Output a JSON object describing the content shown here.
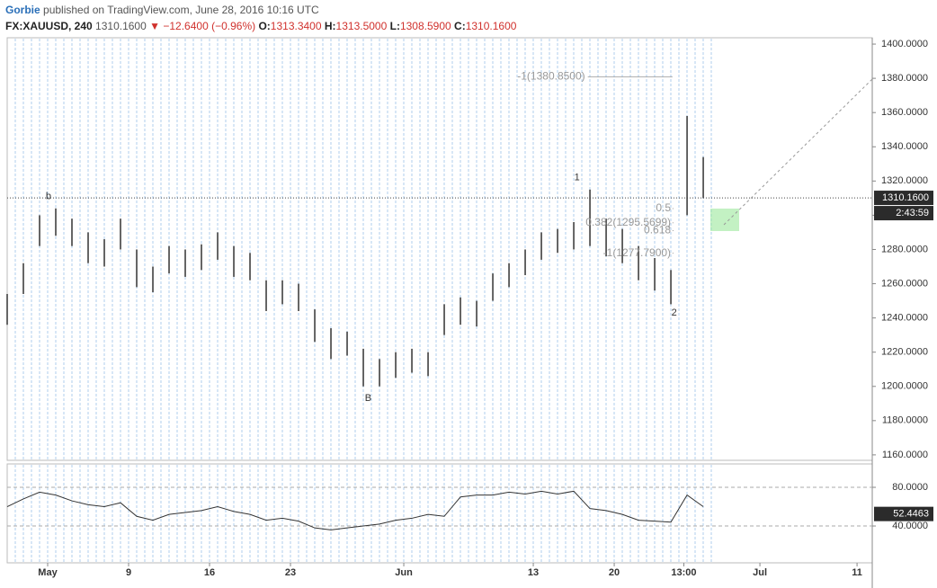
{
  "header": {
    "author": "Gorbie",
    "published": "published on TradingView.com, June 28, 2016 10:16 UTC",
    "symbol": "FX:XAUUSD, 240",
    "last": "1310.1600",
    "change": "−12.6400 (−0.96%)",
    "ohlc": [
      {
        "key": "O:",
        "value": "1313.3400"
      },
      {
        "key": "H:",
        "value": "1313.5000"
      },
      {
        "key": "L:",
        "value": "1308.5900"
      },
      {
        "key": "C:",
        "value": "1310.1600"
      }
    ]
  },
  "chart_data": [
    {
      "type": "ohlc",
      "color": "#333333",
      "x": [
        -2.5,
        -1.5,
        -0.5,
        0.5,
        1.5,
        2.5,
        3.5,
        4.5,
        5.5,
        6.5,
        7.5,
        8.5,
        9.5,
        10.5,
        11.5,
        12.5,
        13.5,
        14.5,
        15.5,
        16.5,
        17.5,
        18.5,
        19.5,
        20.5,
        21.5,
        22.5,
        23.5,
        24.5,
        25.5,
        26.5,
        27.5,
        28.5,
        29.5,
        30.5,
        31.5,
        32.5,
        33.5,
        34.5,
        35.5,
        36.5,
        37.5,
        38.5,
        39.5,
        40.5
      ],
      "high": [
        1254,
        1272,
        1300,
        1304,
        1298,
        1290,
        1286,
        1298,
        1280,
        1270,
        1282,
        1280,
        1283,
        1290,
        1282,
        1278,
        1262,
        1262,
        1260,
        1245,
        1234,
        1232,
        1222,
        1216,
        1220,
        1222,
        1220,
        1248,
        1252,
        1250,
        1266,
        1272,
        1280,
        1290,
        1292,
        1296,
        1315,
        1298,
        1292,
        1282,
        1275,
        1268,
        1358,
        1334
      ],
      "low": [
        1236,
        1254,
        1282,
        1288,
        1282,
        1272,
        1270,
        1280,
        1258,
        1255,
        1266,
        1264,
        1268,
        1274,
        1264,
        1262,
        1244,
        1248,
        1244,
        1226,
        1216,
        1218,
        1200,
        1200,
        1205,
        1208,
        1206,
        1230,
        1236,
        1235,
        1250,
        1258,
        1265,
        1274,
        1278,
        1280,
        1282,
        1276,
        1272,
        1262,
        1256,
        1248,
        1300,
        1310
      ],
      "last_price": {
        "value": 1310.16,
        "label": "1310.1600"
      },
      "countdown": "2:43:59",
      "xlim": [
        -2.5,
        50.94
      ],
      "ylim": [
        1156.8,
        1403.7
      ],
      "xticks": [
        {
          "value": 0,
          "label": "May"
        },
        {
          "value": 5,
          "label": "9"
        },
        {
          "value": 10,
          "label": "16"
        },
        {
          "value": 15,
          "label": "23"
        },
        {
          "value": 22,
          "label": "Jun"
        },
        {
          "value": 30,
          "label": "13"
        },
        {
          "value": 35,
          "label": "20"
        },
        {
          "value": 39.3,
          "label": "13:00"
        },
        {
          "value": 44,
          "label": "Jul"
        },
        {
          "value": 50,
          "label": "11"
        }
      ],
      "yticks": [
        {
          "value": 1160,
          "label": "1160.0000"
        },
        {
          "value": 1180,
          "label": "1180.0000"
        },
        {
          "value": 1200,
          "label": "1200.0000"
        },
        {
          "value": 1220,
          "label": "1220.0000"
        },
        {
          "value": 1240,
          "label": "1240.0000"
        },
        {
          "value": 1260,
          "label": "1260.0000"
        },
        {
          "value": 1280,
          "label": "1280.0000"
        },
        {
          "value": 1300,
          "label": "1300.0000"
        },
        {
          "value": 1320,
          "label": "1320.0000"
        },
        {
          "value": 1340,
          "label": "1340.0000"
        },
        {
          "value": 1360,
          "label": "1360.0000"
        },
        {
          "value": 1380,
          "label": "1380.0000"
        },
        {
          "value": 1400,
          "label": "1400.0000"
        }
      ],
      "annotations": [
        {
          "text": "b",
          "x": 0.05,
          "y": 1311
        },
        {
          "text": "1",
          "x": 32.7,
          "y": 1322
        },
        {
          "text": "B",
          "x": 19.8,
          "y": 1193
        },
        {
          "text": "2",
          "x": 38.7,
          "y": 1243
        }
      ],
      "fib_labels": [
        {
          "text": "-1(1380.8500)",
          "x": 33.2,
          "y": 1380.85
        },
        {
          "text": "0.5",
          "x": 38.5,
          "y": 1303.9
        },
        {
          "text": "0.382(1295.5699)",
          "x": 38.5,
          "y": 1295.57
        },
        {
          "text": "0.618",
          "x": 38.5,
          "y": 1291
        },
        {
          "text": "-1(1277.7900)",
          "x": 38.5,
          "y": 1277.79
        }
      ]
    },
    {
      "type": "line",
      "color": "#333333",
      "x": [
        -2.5,
        -1.5,
        -0.5,
        0.5,
        1.5,
        2.5,
        3.5,
        4.5,
        5.5,
        6.5,
        7.5,
        8.5,
        9.5,
        10.5,
        11.5,
        12.5,
        13.5,
        14.5,
        15.5,
        16.5,
        17.5,
        18.5,
        19.5,
        20.5,
        21.5,
        22.5,
        23.5,
        24.5,
        25.5,
        26.5,
        27.5,
        28.5,
        29.5,
        30.5,
        31.5,
        32.5,
        33.5,
        34.5,
        35.5,
        36.5,
        37.5,
        38.5,
        39.5,
        40.5
      ],
      "values": [
        60,
        68,
        75,
        72,
        66,
        62,
        60,
        64,
        50,
        46,
        52,
        54,
        56,
        60,
        55,
        52,
        46,
        48,
        45,
        38,
        36,
        38,
        40,
        42,
        46,
        48,
        52,
        50,
        70,
        72,
        72,
        75,
        73,
        76,
        73,
        76,
        58,
        56,
        52,
        46,
        45,
        44,
        72,
        60
      ],
      "last_value": 52.4463,
      "xlim": [
        -2.5,
        50.94
      ],
      "ylim": [
        1.9,
        104.2
      ],
      "yticks": [
        {
          "value": 40,
          "label": "40.0000"
        },
        {
          "value": 80,
          "label": "80.0000"
        }
      ]
    }
  ]
}
